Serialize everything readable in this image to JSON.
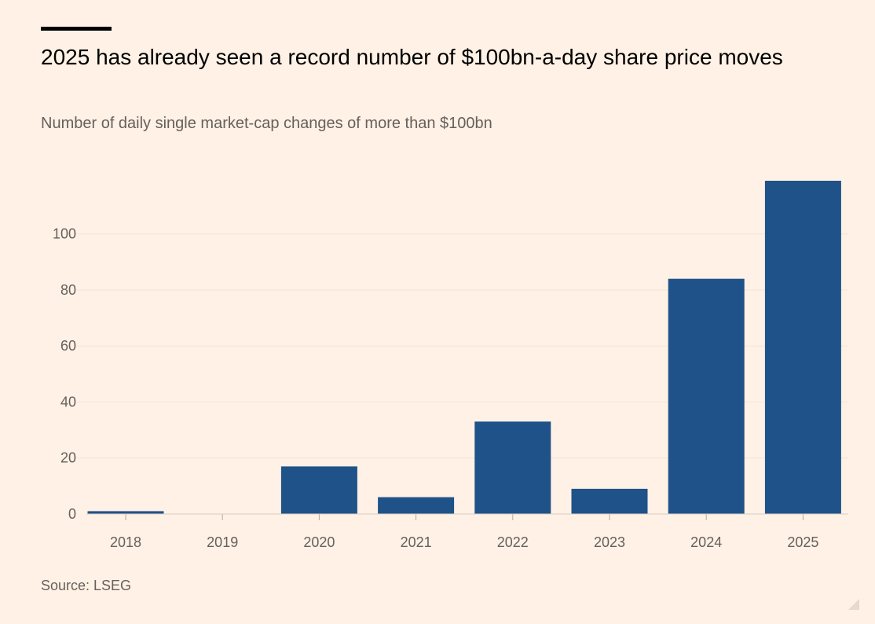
{
  "header": {
    "title": "2025 has already seen a record number of $100bn-a-day share price moves",
    "subtitle": "Number of daily single market-cap changes of more than $100bn"
  },
  "footer": {
    "source": "Source: LSEG"
  },
  "colors": {
    "background": "#fff1e5",
    "bar": "#1f5289",
    "text_muted": "#66605c",
    "gridline": "#f1e4d8"
  },
  "chart_data": {
    "type": "bar",
    "title": "2025 has already seen a record number of $100bn-a-day share price moves",
    "subtitle": "Number of daily single market-cap changes of more than $100bn",
    "xlabel": "",
    "ylabel": "",
    "categories": [
      "2018",
      "2019",
      "2020",
      "2021",
      "2022",
      "2023",
      "2024",
      "2025"
    ],
    "values": [
      1,
      0,
      17,
      6,
      33,
      9,
      84,
      119
    ],
    "ylim": [
      0,
      120
    ],
    "yticks": [
      0,
      20,
      40,
      60,
      80,
      100
    ],
    "grid": true
  }
}
